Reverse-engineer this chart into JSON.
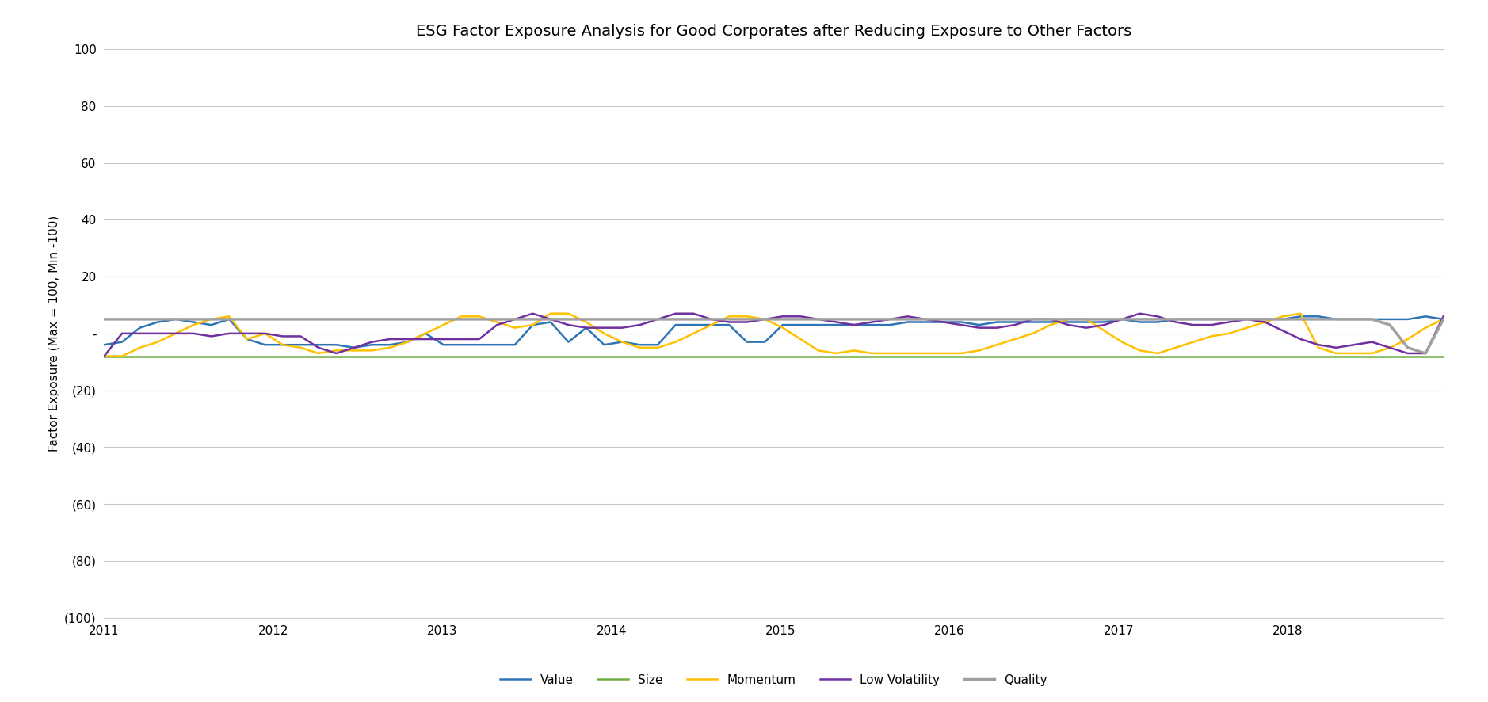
{
  "title": "ESG Factor Exposure Analysis for Good Corporates after Reducing Exposure to Other Factors",
  "ylabel": "Factor Exposure (Max = 100, Min -100)",
  "ylim": [
    -100,
    100
  ],
  "yticks": [
    -100,
    -80,
    -60,
    -40,
    -20,
    0,
    20,
    40,
    60,
    80,
    100
  ],
  "ytick_labels": [
    "(100)",
    "(80)",
    "(60)",
    "(40)",
    "(20)",
    "-",
    "20",
    "40",
    "60",
    "80",
    "100"
  ],
  "xlim_start": 2011.0,
  "xlim_end": 2018.92,
  "xtick_years": [
    2011,
    2012,
    2013,
    2014,
    2015,
    2016,
    2017,
    2018
  ],
  "series": {
    "Value": {
      "color": "#2E75B6",
      "linewidth": 1.8,
      "data": [
        -4,
        -3,
        2,
        4,
        5,
        4,
        3,
        5,
        -2,
        -4,
        -4,
        -4,
        -4,
        -4,
        -5,
        -4,
        -4,
        -3,
        0,
        -4,
        -4,
        -4,
        -4,
        -4,
        3,
        4,
        -3,
        2,
        -4,
        -3,
        -4,
        -4,
        3,
        3,
        3,
        3,
        -3,
        -3,
        3,
        3,
        3,
        3,
        3,
        3,
        3,
        4,
        4,
        4,
        4,
        3,
        4,
        4,
        4,
        4,
        4,
        4,
        4,
        5,
        4,
        4,
        5,
        5,
        5,
        5,
        5,
        5,
        5,
        6,
        6,
        5,
        5,
        5,
        5,
        5,
        6,
        5
      ]
    },
    "Size": {
      "color": "#70AD47",
      "linewidth": 1.8,
      "data": [
        -8,
        -8,
        -8,
        -8,
        -8,
        -8,
        -8,
        -8,
        -8,
        -8,
        -8,
        -8,
        -8,
        -8,
        -8,
        -8,
        -8,
        -8,
        -8,
        -8,
        -8,
        -8,
        -8,
        -8,
        -8,
        -8,
        -8,
        -8,
        -8,
        -8,
        -8,
        -8,
        -8,
        -8,
        -8,
        -8,
        -8,
        -8,
        -8,
        -8,
        -8,
        -8,
        -8,
        -8,
        -8,
        -8,
        -8,
        -8,
        -8,
        -8,
        -8,
        -8,
        -8,
        -8,
        -8,
        -8,
        -8,
        -8,
        -8,
        -8,
        -8,
        -8,
        -8,
        -8,
        -8,
        -8,
        -8,
        -8,
        -8,
        -8,
        -8,
        -8,
        -8,
        -8,
        -8,
        -8
      ]
    },
    "Momentum": {
      "color": "#FFC000",
      "linewidth": 1.8,
      "data": [
        -8,
        -8,
        -5,
        -3,
        0,
        3,
        5,
        6,
        -2,
        0,
        -4,
        -5,
        -7,
        -6,
        -6,
        -6,
        -5,
        -3,
        0,
        3,
        6,
        6,
        4,
        2,
        3,
        7,
        7,
        4,
        0,
        -3,
        -5,
        -5,
        -3,
        0,
        3,
        6,
        6,
        5,
        2,
        -2,
        -6,
        -7,
        -6,
        -7,
        -7,
        -7,
        -7,
        -7,
        -7,
        -6,
        -4,
        -2,
        0,
        3,
        5,
        5,
        1,
        -3,
        -6,
        -7,
        -5,
        -3,
        -1,
        0,
        2,
        4,
        6,
        7,
        -5,
        -7,
        -7,
        -7,
        -5,
        -2,
        2,
        5
      ]
    },
    "Low Volatility": {
      "color": "#7030A0",
      "linewidth": 1.8,
      "data": [
        -8,
        0,
        0,
        0,
        0,
        0,
        -1,
        0,
        0,
        0,
        -1,
        -1,
        -5,
        -7,
        -5,
        -3,
        -2,
        -2,
        -2,
        -2,
        -2,
        -2,
        3,
        5,
        7,
        5,
        3,
        2,
        2,
        2,
        3,
        5,
        7,
        7,
        5,
        4,
        4,
        5,
        6,
        6,
        5,
        4,
        3,
        4,
        5,
        6,
        5,
        4,
        3,
        2,
        2,
        3,
        5,
        5,
        3,
        2,
        3,
        5,
        7,
        6,
        4,
        3,
        3,
        4,
        5,
        4,
        1,
        -2,
        -4,
        -5,
        -4,
        -3,
        -5,
        -7,
        -7,
        6
      ]
    },
    "Quality": {
      "color": "#A0A0A0",
      "linewidth": 2.5,
      "data": [
        5,
        5,
        5,
        5,
        5,
        5,
        5,
        5,
        5,
        5,
        5,
        5,
        5,
        5,
        5,
        5,
        5,
        5,
        5,
        5,
        5,
        5,
        5,
        5,
        5,
        5,
        5,
        5,
        5,
        5,
        5,
        5,
        5,
        5,
        5,
        5,
        5,
        5,
        5,
        5,
        5,
        5,
        5,
        5,
        5,
        5,
        5,
        5,
        5,
        5,
        5,
        5,
        5,
        5,
        5,
        5,
        5,
        5,
        5,
        5,
        5,
        5,
        5,
        5,
        5,
        5,
        5,
        5,
        5,
        5,
        5,
        5,
        3,
        -5,
        -7,
        5
      ]
    }
  },
  "legend_order": [
    "Value",
    "Size",
    "Momentum",
    "Low Volatility",
    "Quality"
  ],
  "background_color": "#FFFFFF",
  "grid_color": "#C8C8C8",
  "title_fontsize": 14,
  "axis_label_fontsize": 11,
  "tick_fontsize": 11,
  "legend_fontsize": 11
}
